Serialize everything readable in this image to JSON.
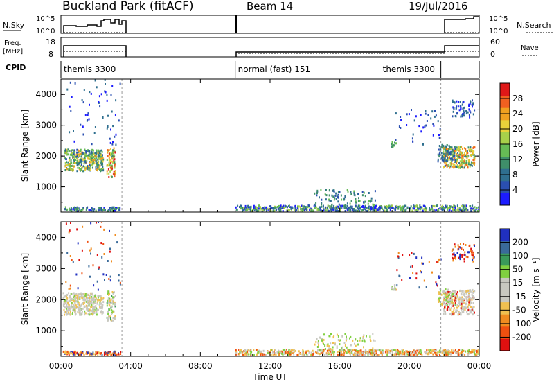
{
  "header": {
    "station": "Buckland Park (fitACF)",
    "beam": "Beam 14",
    "date": "19/Jul/2016"
  },
  "strip_labels": {
    "nsky": "N.Sky",
    "freq": "Freq.",
    "mhz": "[MHz]",
    "cpid": "CPID",
    "nsearch": "N.Search",
    "nave": "Nave"
  },
  "strip_ticks": {
    "nsky_hi": "10^5",
    "nsky_lo": "10^0",
    "freq_hi": "18",
    "freq_lo": "8",
    "nsearch_hi": "10^5",
    "nsearch_lo": "10^0",
    "nave_hi": "60",
    "nave_lo": "0"
  },
  "cpid_segments": [
    {
      "label": "themis 3300",
      "start_h": 0.0,
      "end_h": 3.5
    },
    {
      "label": "normal (fast) 151",
      "start_h": 10.0,
      "end_h": 21.8
    },
    {
      "label": "themis 3300",
      "start_h": 21.8,
      "end_h": 24.0
    }
  ],
  "colors": {
    "power": [
      "#1c1cff",
      "#2a4fb0",
      "#2f6f8f",
      "#3f8f6a",
      "#66bb55",
      "#a8d04a",
      "#e8d23a",
      "#f0a020",
      "#f06020",
      "#e01818"
    ],
    "velocity": [
      "#e01010",
      "#f05010",
      "#f08c20",
      "#f0c050",
      "#c8c8c0",
      "#c8c8c0",
      "#80d040",
      "#3a9a5a",
      "#3a6a9a",
      "#2030c0"
    ]
  },
  "chart_data": [
    {
      "type": "heatmap",
      "panel": "power",
      "xlabel": "",
      "ylabel": "Slant Range [km]",
      "colorbar_label": "Power [dB]",
      "colorbar_ticks": [
        "4",
        "8",
        "12",
        "16",
        "20",
        "24",
        "28"
      ],
      "x_ticks": [],
      "y_ticks": [
        "1000",
        "2000",
        "3000",
        "4000"
      ],
      "xlim": [
        0,
        24
      ],
      "ylim": [
        180,
        4500
      ]
    },
    {
      "type": "heatmap",
      "panel": "velocity",
      "xlabel": "Time UT",
      "ylabel": "Slant Range [km]",
      "colorbar_label": "Velocity [m s⁻¹]",
      "colorbar_ticks": [
        "-200",
        "-100",
        "-50",
        "-15",
        "15",
        "50",
        "100",
        "200"
      ],
      "x_ticks": [
        "00:00",
        "04:00",
        "08:00",
        "12:00",
        "16:00",
        "20:00",
        "00:00"
      ],
      "y_ticks": [
        "1000",
        "2000",
        "3000",
        "4000"
      ],
      "xlim": [
        0,
        24
      ],
      "ylim": [
        180,
        4500
      ]
    }
  ]
}
